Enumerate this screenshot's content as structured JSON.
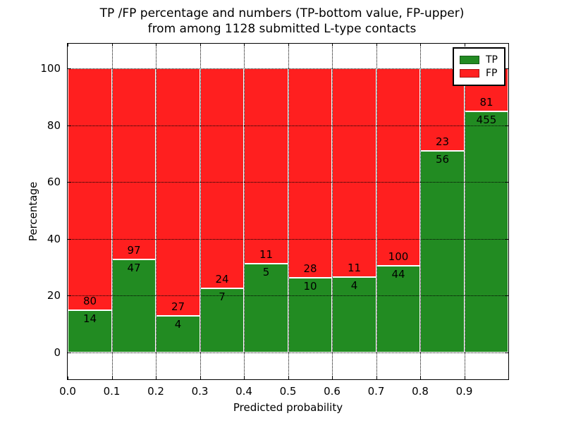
{
  "title": {
    "line1": "TP /FP percentage and numbers (TP-bottom value, FP-upper)",
    "line2": "from among 1128 submitted L-type contacts"
  },
  "axes": {
    "xlabel": "Predicted probability",
    "ylabel": "Percentage",
    "xtick_labels": [
      "0.0",
      "0.1",
      "0.2",
      "0.3",
      "0.4",
      "0.5",
      "0.6",
      "0.7",
      "0.8",
      "0.9"
    ],
    "ytick_labels": [
      "0",
      "20",
      "40",
      "60",
      "80",
      "100"
    ],
    "ytick_values": [
      0,
      20,
      40,
      60,
      80,
      100
    ]
  },
  "legend": {
    "entries": [
      {
        "label": "TP",
        "color": "#228b22"
      },
      {
        "label": "FP",
        "color": "#ff1f1f"
      }
    ],
    "position": "upper right"
  },
  "chart_data": {
    "type": "bar",
    "stacked": true,
    "normalized_to_100_percent": true,
    "title": "TP /FP percentage and numbers (TP-bottom value, FP-upper) from among 1128 submitted L-type contacts",
    "xlabel": "Predicted probability",
    "ylabel": "Percentage",
    "total_contacts": 1128,
    "categories": [
      "0.0-0.1",
      "0.1-0.2",
      "0.2-0.3",
      "0.3-0.4",
      "0.4-0.5",
      "0.5-0.6",
      "0.6-0.7",
      "0.7-0.8",
      "0.8-0.9",
      "0.9-1.0"
    ],
    "bin_left_edges": [
      0.0,
      0.1,
      0.2,
      0.3,
      0.4,
      0.5,
      0.6,
      0.7,
      0.8,
      0.9
    ],
    "bin_width": 0.1,
    "series": [
      {
        "name": "TP",
        "color": "#228b22",
        "values": [
          14,
          47,
          4,
          7,
          5,
          10,
          4,
          44,
          56,
          455
        ]
      },
      {
        "name": "FP",
        "color": "#ff1f1f",
        "values": [
          80,
          97,
          27,
          24,
          11,
          28,
          11,
          100,
          23,
          81
        ]
      }
    ],
    "tp_percent_heights": [
      14.89,
      32.64,
      12.9,
      22.58,
      31.25,
      26.32,
      26.67,
      30.56,
      70.89,
      84.89
    ],
    "xlim": [
      0.0,
      1.0
    ],
    "ylim": [
      0,
      100
    ],
    "grid": "dotted, both axes, drawn above bars",
    "legend_position": "upper right"
  }
}
